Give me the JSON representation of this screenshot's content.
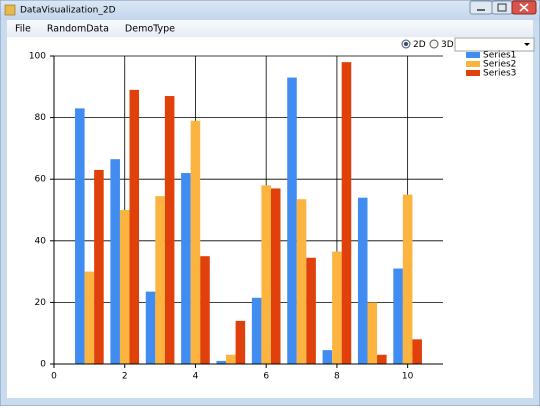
{
  "window": {
    "title": "DataVisualization_2D"
  },
  "menu": [
    "File",
    "RandomData",
    "DemoType"
  ],
  "radios": [
    {
      "label": "2D",
      "checked": true
    },
    {
      "label": "3D",
      "checked": false
    }
  ],
  "chart_data": {
    "type": "bar",
    "x": [
      1,
      2,
      3,
      4,
      5,
      6,
      7,
      8,
      9,
      10
    ],
    "series": [
      {
        "name": "Series1",
        "color": "#418cf0",
        "values": [
          83,
          66.5,
          23.5,
          62,
          1,
          21.5,
          93,
          4.5,
          54,
          31
        ]
      },
      {
        "name": "Series2",
        "color": "#fcb441",
        "values": [
          30,
          50,
          54.5,
          79,
          3,
          58,
          53.5,
          36.5,
          20,
          55
        ]
      },
      {
        "name": "Series3",
        "color": "#e0400a",
        "values": [
          63,
          89,
          87,
          35,
          14,
          57,
          34.5,
          98,
          3,
          8
        ]
      }
    ],
    "xlim": [
      0,
      11
    ],
    "xticks": [
      0,
      2,
      4,
      6,
      8,
      10
    ],
    "ylim": [
      0,
      100
    ],
    "yticks": [
      0,
      20,
      40,
      60,
      80,
      100
    ],
    "grid": true,
    "legend": "top-right"
  }
}
